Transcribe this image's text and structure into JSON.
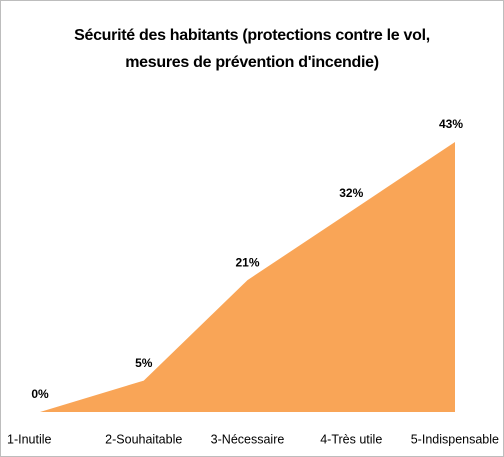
{
  "chart_data": {
    "type": "area",
    "title": "Sécurité des habitants (protections contre le vol, mesures de prévention d'incendie)",
    "categories": [
      "1-Inutile",
      "2-Souhaitable",
      "3-Nécessaire",
      "4-Très utile",
      "5-Indispensable"
    ],
    "values": [
      0,
      5,
      21,
      32,
      43
    ],
    "value_labels": [
      "0%",
      "5%",
      "21%",
      "32%",
      "43%"
    ],
    "color": "#f9a557"
  }
}
